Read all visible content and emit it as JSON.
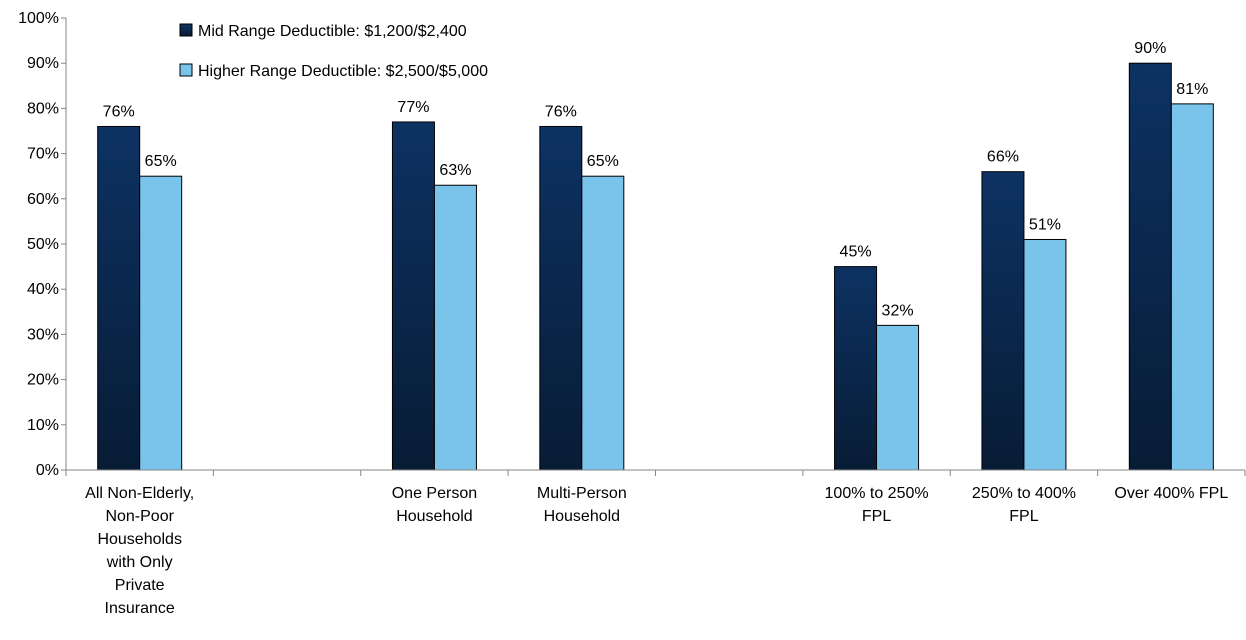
{
  "chart_data": {
    "type": "bar",
    "categories": [
      [
        "All Non-Elderly,",
        "Non-Poor",
        "Households",
        "with Only",
        "Private",
        "Insurance"
      ],
      [],
      [
        "One Person",
        "Household"
      ],
      [
        "Multi-Person",
        "Household"
      ],
      [],
      [
        "100% to 250%",
        "FPL"
      ],
      [
        "250% to 400%",
        "FPL"
      ],
      [
        "Over 400% FPL"
      ]
    ],
    "series": [
      {
        "name": "Mid Range Deductible: $1,200/$2,400",
        "color_top": "#0d3263",
        "color_bottom": "#081c35",
        "values": [
          76,
          null,
          77,
          76,
          null,
          45,
          66,
          90
        ],
        "labels": [
          "76%",
          "",
          "77%",
          "76%",
          "",
          "45%",
          "66%",
          "90%"
        ]
      },
      {
        "name": "Higher Range Deductible: $2,500/$5,000",
        "color_top": "#7ac4ec",
        "color_bottom": "#7ac4ec",
        "values": [
          65,
          null,
          63,
          65,
          null,
          32,
          51,
          81
        ],
        "labels": [
          "65%",
          "",
          "63%",
          "65%",
          "",
          "32%",
          "51%",
          "81%"
        ]
      }
    ],
    "y_ticks": [
      "0%",
      "10%",
      "20%",
      "30%",
      "40%",
      "50%",
      "60%",
      "70%",
      "80%",
      "90%",
      "100%"
    ],
    "ylim": [
      0,
      100
    ],
    "grid": false,
    "legend_position": "top-left"
  }
}
